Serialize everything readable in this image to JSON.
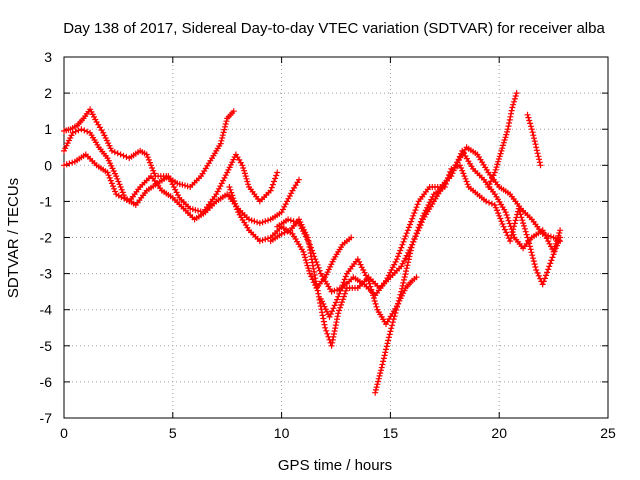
{
  "chart_data": {
    "type": "scatter",
    "title": "Day 138 of 2017, Sidereal Day-to-day VTEC variation (SDTVAR) for receiver alba",
    "xlabel": "GPS time / hours",
    "ylabel": "SDTVAR / TECUs",
    "xlim": [
      0,
      25
    ],
    "ylim": [
      -7,
      3
    ],
    "xticks": [
      0,
      5,
      10,
      15,
      20,
      25
    ],
    "yticks": [
      3,
      2,
      1,
      0,
      -1,
      -2,
      -3,
      -4,
      -5,
      -6,
      -7
    ],
    "grid": true,
    "marker": "plus",
    "color": "#ff0000",
    "series": [
      {
        "name": "track-1",
        "points": [
          [
            0,
            0.95
          ],
          [
            0.3,
            1.0
          ],
          [
            0.6,
            1.1
          ],
          [
            0.9,
            1.3
          ],
          [
            1.2,
            1.55
          ],
          [
            1.5,
            1.2
          ],
          [
            1.8,
            0.9
          ],
          [
            2.2,
            0.4
          ],
          [
            2.6,
            0.3
          ],
          [
            3.0,
            0.2
          ],
          [
            3.5,
            0.4
          ],
          [
            3.8,
            0.3
          ],
          [
            4.2,
            -0.3
          ],
          [
            4.7,
            -0.3
          ],
          [
            5.2,
            -0.5
          ],
          [
            5.8,
            -0.6
          ],
          [
            6.3,
            -0.3
          ],
          [
            6.8,
            0.2
          ],
          [
            7.2,
            0.6
          ],
          [
            7.5,
            1.3
          ],
          [
            7.8,
            1.5
          ]
        ]
      },
      {
        "name": "track-2",
        "points": [
          [
            0,
            0.4
          ],
          [
            0.4,
            0.9
          ],
          [
            0.8,
            1.0
          ],
          [
            1.2,
            0.9
          ],
          [
            1.6,
            0.5
          ],
          [
            2.0,
            0.2
          ],
          [
            2.4,
            -0.3
          ],
          [
            2.8,
            -0.9
          ],
          [
            3.3,
            -1.1
          ],
          [
            3.8,
            -0.7
          ],
          [
            4.3,
            -0.5
          ],
          [
            4.8,
            -0.3
          ],
          [
            5.3,
            -0.9
          ],
          [
            5.8,
            -1.2
          ],
          [
            6.4,
            -1.3
          ],
          [
            7.0,
            -0.8
          ],
          [
            7.5,
            -0.2
          ],
          [
            7.9,
            0.3
          ],
          [
            8.2,
            0.0
          ],
          [
            8.5,
            -0.6
          ],
          [
            9.0,
            -1.0
          ],
          [
            9.5,
            -0.7
          ],
          [
            9.8,
            -0.2
          ]
        ]
      },
      {
        "name": "track-3",
        "points": [
          [
            0,
            0.0
          ],
          [
            0.5,
            0.1
          ],
          [
            1.0,
            0.3
          ],
          [
            1.5,
            0.0
          ],
          [
            2.0,
            -0.2
          ],
          [
            2.4,
            -0.8
          ],
          [
            3.0,
            -1.0
          ],
          [
            3.5,
            -0.6
          ],
          [
            4.0,
            -0.3
          ],
          [
            4.5,
            -0.7
          ],
          [
            5.0,
            -0.9
          ],
          [
            5.5,
            -1.2
          ],
          [
            6.0,
            -1.5
          ],
          [
            6.5,
            -1.3
          ],
          [
            7.0,
            -1.0
          ],
          [
            7.5,
            -0.8
          ],
          [
            8.0,
            -1.2
          ],
          [
            8.5,
            -1.5
          ],
          [
            9.0,
            -1.6
          ],
          [
            9.5,
            -1.5
          ],
          [
            10.0,
            -1.3
          ],
          [
            10.5,
            -0.7
          ],
          [
            10.8,
            -0.4
          ]
        ]
      },
      {
        "name": "track-4",
        "points": [
          [
            7.6,
            -0.6
          ],
          [
            8.0,
            -1.3
          ],
          [
            8.5,
            -1.8
          ],
          [
            9.0,
            -2.1
          ],
          [
            9.5,
            -2.0
          ],
          [
            10.0,
            -1.7
          ],
          [
            10.5,
            -1.9
          ],
          [
            11.0,
            -2.4
          ],
          [
            11.3,
            -3.0
          ],
          [
            11.6,
            -3.4
          ],
          [
            12.0,
            -3.1
          ],
          [
            12.4,
            -2.6
          ],
          [
            12.8,
            -2.2
          ],
          [
            13.2,
            -2.0
          ]
        ]
      },
      {
        "name": "track-5",
        "points": [
          [
            9.5,
            -2.1
          ],
          [
            10.0,
            -1.9
          ],
          [
            10.4,
            -1.8
          ],
          [
            10.8,
            -1.5
          ],
          [
            11.2,
            -2.0
          ],
          [
            11.6,
            -3.3
          ],
          [
            12.0,
            -4.5
          ],
          [
            12.3,
            -5.0
          ],
          [
            12.6,
            -4.1
          ],
          [
            13.0,
            -3.4
          ],
          [
            13.5,
            -3.4
          ],
          [
            14.0,
            -3.1
          ],
          [
            14.5,
            -3.4
          ],
          [
            15.0,
            -3.1
          ],
          [
            15.5,
            -2.8
          ],
          [
            16.0,
            -2.2
          ],
          [
            16.5,
            -1.5
          ],
          [
            17.0,
            -1.0
          ],
          [
            17.5,
            -0.5
          ],
          [
            18.0,
            0.0
          ],
          [
            18.5,
            0.5
          ],
          [
            19.0,
            0.3
          ],
          [
            19.5,
            -0.2
          ],
          [
            20.0,
            -0.6
          ],
          [
            20.5,
            -0.8
          ],
          [
            21.0,
            -1.2
          ],
          [
            21.5,
            -1.5
          ],
          [
            22.0,
            -1.9
          ],
          [
            22.5,
            -2.0
          ],
          [
            22.8,
            -2.1
          ]
        ]
      },
      {
        "name": "track-6",
        "points": [
          [
            9.8,
            -1.7
          ],
          [
            10.3,
            -1.5
          ],
          [
            10.8,
            -1.6
          ],
          [
            11.3,
            -2.2
          ],
          [
            11.8,
            -3.0
          ],
          [
            12.3,
            -3.5
          ],
          [
            12.8,
            -3.4
          ],
          [
            13.3,
            -3.1
          ],
          [
            13.8,
            -3.3
          ],
          [
            14.3,
            -3.6
          ],
          [
            14.8,
            -3.2
          ],
          [
            15.3,
            -2.6
          ],
          [
            15.8,
            -1.8
          ],
          [
            16.3,
            -1.0
          ],
          [
            16.8,
            -0.6
          ],
          [
            17.3,
            -0.6
          ],
          [
            17.8,
            -0.3
          ],
          [
            18.3,
            0.4
          ],
          [
            18.8,
            -0.1
          ],
          [
            19.3,
            -0.4
          ],
          [
            19.8,
            -0.8
          ],
          [
            20.3,
            -1.3
          ],
          [
            20.7,
            -2.0
          ],
          [
            21.1,
            -2.3
          ],
          [
            21.5,
            -2.0
          ],
          [
            22.0,
            -1.8
          ],
          [
            22.5,
            -2.4
          ],
          [
            22.8,
            -1.8
          ]
        ]
      },
      {
        "name": "track-7",
        "points": [
          [
            11.8,
            -3.7
          ],
          [
            12.2,
            -4.2
          ],
          [
            12.5,
            -3.8
          ],
          [
            13.0,
            -3.0
          ],
          [
            13.5,
            -2.6
          ],
          [
            14.0,
            -3.2
          ],
          [
            14.4,
            -4.0
          ],
          [
            14.8,
            -4.4
          ],
          [
            15.3,
            -3.9
          ],
          [
            15.7,
            -3.4
          ],
          [
            16.0,
            -3.2
          ],
          [
            16.2,
            -3.1
          ]
        ]
      },
      {
        "name": "track-8",
        "points": [
          [
            14.3,
            -6.3
          ],
          [
            14.6,
            -5.6
          ],
          [
            15.0,
            -4.6
          ],
          [
            15.5,
            -3.5
          ],
          [
            16.0,
            -2.2
          ],
          [
            16.5,
            -1.4
          ],
          [
            17.0,
            -0.8
          ],
          [
            17.5,
            -0.6
          ],
          [
            17.8,
            -0.1
          ],
          [
            18.2,
            0.0
          ],
          [
            18.6,
            -0.6
          ],
          [
            19.0,
            -0.8
          ],
          [
            19.4,
            -1.0
          ],
          [
            19.8,
            -1.1
          ],
          [
            20.2,
            -1.7
          ],
          [
            20.5,
            -2.1
          ],
          [
            20.9,
            -1.2
          ],
          [
            21.3,
            -2.0
          ],
          [
            21.7,
            -2.9
          ],
          [
            22.0,
            -3.3
          ],
          [
            22.3,
            -2.8
          ],
          [
            22.6,
            -2.3
          ],
          [
            22.8,
            -2.0
          ]
        ]
      },
      {
        "name": "track-9",
        "points": [
          [
            19.5,
            -0.6
          ],
          [
            19.8,
            -0.2
          ],
          [
            20.1,
            0.4
          ],
          [
            20.4,
            1.0
          ],
          [
            20.6,
            1.6
          ],
          [
            20.8,
            2.0
          ]
        ]
      },
      {
        "name": "track-10",
        "points": [
          [
            21.3,
            1.4
          ],
          [
            21.5,
            1.0
          ],
          [
            21.7,
            0.5
          ],
          [
            21.9,
            0.0
          ]
        ]
      }
    ]
  }
}
